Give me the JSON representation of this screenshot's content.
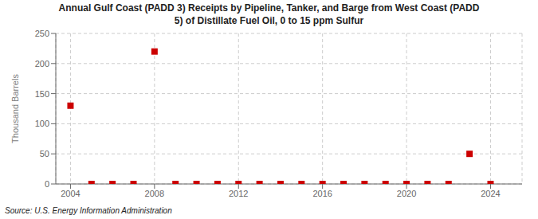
{
  "chart_data": {
    "type": "scatter",
    "title": "Annual Gulf Coast (PADD 3) Receipts by Pipeline, Tanker, and Barge from West Coast (PADD\n5) of Distillate Fuel Oil, 0 to 15 ppm Sulfur",
    "ylabel": "Thousand Barrels",
    "annotations": [
      "Source: U.S. Energy Information Administration"
    ],
    "x": [
      2004,
      2005,
      2006,
      2007,
      2008,
      2009,
      2010,
      2011,
      2012,
      2013,
      2014,
      2015,
      2016,
      2017,
      2018,
      2019,
      2020,
      2021,
      2022,
      2023,
      2024
    ],
    "values": [
      130,
      0,
      0,
      0,
      220,
      0,
      0,
      0,
      0,
      0,
      0,
      0,
      0,
      0,
      0,
      0,
      0,
      0,
      0,
      50,
      0
    ],
    "color": "#cc0000",
    "marker": "square",
    "xlim": [
      2003.3,
      2025.5
    ],
    "ylim": [
      0,
      250
    ],
    "xticks": [
      2004,
      2008,
      2012,
      2016,
      2020,
      2024
    ],
    "yticks": [
      0,
      50,
      100,
      150,
      200,
      250
    ],
    "grid": true
  }
}
